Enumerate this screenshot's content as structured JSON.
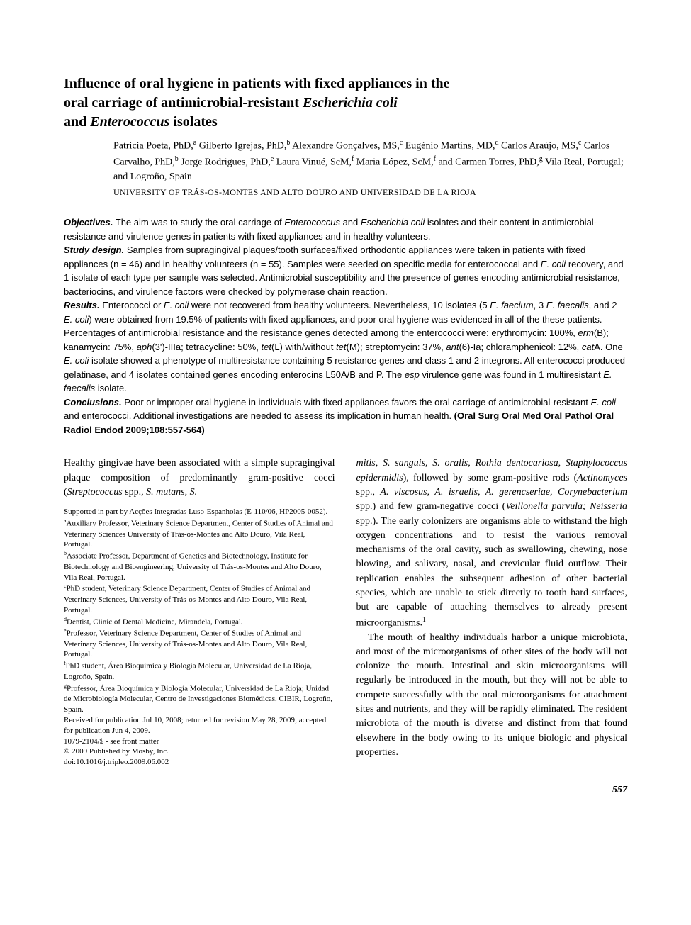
{
  "title_line1": "Influence of oral hygiene in patients with fixed appliances in the",
  "title_line2_plain": "oral carriage of antimicrobial-resistant ",
  "title_line2_italic": "Escherichia coli",
  "title_line3_plain": "and ",
  "title_line3_italic": "Enterococcus",
  "title_line3_plain2": " isolates",
  "authors_html": "Patricia Poeta, PhD,<sup>a</sup> Gilberto Igrejas, PhD,<sup>b</sup> Alexandre Gonçalves, MS,<sup>c</sup> Eugénio Martins, MD,<sup>d</sup> Carlos Araújo, MS,<sup>c</sup> Carlos Carvalho, PhD,<sup>b</sup> Jorge Rodrigues, PhD,<sup>e</sup> Laura Vinué, ScM,<sup>f</sup> Maria López, ScM,<sup>f</sup> and Carmen Torres, PhD,<sup>g</sup> Vila Real, Portugal; and Logroño, Spain",
  "affiliation_summary": "UNIVERSITY OF TRÁS-OS-MONTES AND ALTO DOURO AND UNIVERSIDAD DE LA RIOJA",
  "abstract": {
    "objectives_label": "Objectives.",
    "objectives_html": " The aim was to study the oral carriage of <span class=\"italic\">Enterococcus</span> and <span class=\"italic\">Escherichia coli</span> isolates and their content in antimicrobial-resistance and virulence genes in patients with fixed appliances and in healthy volunteers.",
    "study_label": "Study design.",
    "study_html": " Samples from supragingival plaques/tooth surfaces/fixed orthodontic appliances were taken in patients with fixed appliances (n = 46) and in healthy volunteers (n = 55). Samples were seeded on specific media for enterococcal and <span class=\"italic\">E. coli</span> recovery, and 1 isolate of each type per sample was selected. Antimicrobial susceptibility and the presence of genes encoding antimicrobial resistance, bacteriocins, and virulence factors were checked by polymerase chain reaction.",
    "results_label": "Results.",
    "results_html": " Enterococci or <span class=\"italic\">E. coli</span> were not recovered from healthy volunteers. Nevertheless, 10 isolates (5 <span class=\"italic\">E. faecium</span>, 3 <span class=\"italic\">E. faecalis</span>, and 2 <span class=\"italic\">E. coli</span>) were obtained from 19.5% of patients with fixed appliances, and poor oral hygiene was evidenced in all of the these patients. Percentages of antimicrobial resistance and the resistance genes detected among the enterococci were: erythromycin: 100%, <span class=\"italic\">erm</span>(B); kanamycin: 75%, <span class=\"italic\">aph</span>(3')-IIIa; tetracycline: 50%, <span class=\"italic\">tet</span>(L) with/without <span class=\"italic\">tet</span>(M); streptomycin: 37%, <span class=\"italic\">ant</span>(6)-Ia; chloramphenicol: 12%, <span class=\"italic\">cat</span>A. One <span class=\"italic\">E. coli</span> isolate showed a phenotype of multiresistance containing 5 resistance genes and class 1 and 2 integrons. All enterococci produced gelatinase, and 4 isolates contained genes encoding enterocins L50A/B and P. The <span class=\"italic\">esp</span> virulence gene was found in 1 multiresistant <span class=\"italic\">E. faecalis</span> isolate.",
    "conclusions_label": "Conclusions.",
    "conclusions_html": " Poor or improper oral hygiene in individuals with fixed appliances favors the oral carriage of antimicrobial-resistant <span class=\"italic\">E. coli</span> and enterococci. Additional investigations are needed to assess its implication in human health. <b>(Oral Surg Oral Med Oral Pathol Oral Radiol Endod 2009;108:557-564)</b>"
  },
  "body_left_html": "Healthy gingivae have been associated with a simple supragingival plaque composition of predominantly gram-positive cocci (<span class=\"italic\">Streptococcus</span> spp., <span class=\"italic\">S. mutans, S.</span>",
  "footnotes_html": "Supported in part by Acções Integradas Luso-Espanholas (E-110/06, HP2005-0052).<br><sup>a</sup>Auxiliary Professor, Veterinary Science Department, Center of Studies of Animal and Veterinary Sciences University of Trás-os-Montes and Alto Douro, Vila Real, Portugal.<br><sup>b</sup>Associate Professor, Department of Genetics and Biotechnology, Institute for Biotechnology and Bioengineering, University of Trás-os-Montes and Alto Douro, Vila Real, Portugal.<br><sup>c</sup>PhD student, Veterinary Science Department, Center of Studies of Animal and Veterinary Sciences, University of Trás-os-Montes and Alto Douro, Vila Real, Portugal.<br><sup>d</sup>Dentist, Clinic of Dental Medicine, Mirandela, Portugal.<br><sup>e</sup>Professor, Veterinary Science Department, Center of Studies of Animal and Veterinary Sciences, University of Trás-os-Montes and Alto Douro, Vila Real, Portugal.<br><sup>f</sup>PhD student, Área Bioquímica y Biología Molecular, Universidad de La Rioja, Logroño, Spain.<br><sup>g</sup>Professor, Área Bioquímica y Biología Molecular, Universidad de La Rioja; Unidad de Microbiología Molecular, Centro de Investigaciones Biomédicas, CIBIR, Logroño, Spain.<br>Received for publication Jul 10, 2008; returned for revision May 28, 2009; accepted for publication Jun 4, 2009.<br>1079-2104/$ - see front matter<br>© 2009 Published by Mosby, Inc.<br>doi:10.1016/j.tripleo.2009.06.002",
  "body_right_p1_html": "<span class=\"italic\">mitis, S. sanguis, S. oralis, Rothia dentocariosa, Staphylococcus epidermidis</span>), followed by some gram-positive rods (<span class=\"italic\">Actinomyces</span> spp., <span class=\"italic\">A. viscosus, A. israelis, A. gerencseriae, Corynebacterium</span> spp.) and few gram-negative cocci (<span class=\"italic\">Veillonella parvula; Neisseria</span> spp.). The early colonizers are organisms able to withstand the high oxygen concentrations and to resist the various removal mechanisms of the oral cavity, such as swallowing, chewing, nose blowing, and salivary, nasal, and crevicular fluid outflow. Their replication enables the subsequent adhesion of other bacterial species, which are unable to stick directly to tooth hard surfaces, but are capable of attaching themselves to already present microorganisms.<sup>1</sup>",
  "body_right_p2_html": "The mouth of healthy individuals harbor a unique microbiota, and most of the microorganisms of other sites of the body will not colonize the mouth. Intestinal and skin microorganisms will regularly be introduced in the mouth, but they will not be able to compete successfully with the oral microorganisms for attachment sites and nutrients, and they will be rapidly eliminated. The resident microbiota of the mouth is diverse and distinct from that found elsewhere in the body owing to its unique biologic and physical properties.",
  "page_number": "557",
  "colors": {
    "text": "#000000",
    "background": "#ffffff",
    "rule": "#000000"
  },
  "fonts": {
    "body": "Georgia, Times New Roman, serif",
    "abstract": "Arial, Helvetica, sans-serif"
  }
}
